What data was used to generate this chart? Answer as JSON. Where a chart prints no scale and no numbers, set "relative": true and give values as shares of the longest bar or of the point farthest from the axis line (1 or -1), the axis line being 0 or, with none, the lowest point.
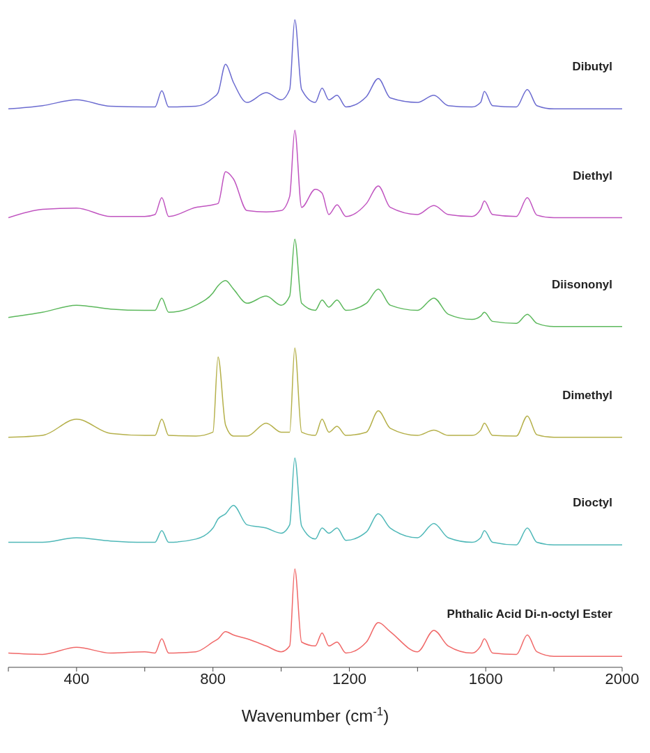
{
  "chart_data": {
    "type": "line",
    "relative": true,
    "xlabel": "Wavenumber (cm$^{-1}$)",
    "xlim": [
      200,
      2000
    ],
    "xticks": [
      {
        "value": 200,
        "label": null
      },
      400,
      {
        "value": 600,
        "label": null
      },
      800,
      {
        "value": 1000,
        "label": null
      },
      1200,
      {
        "value": 1400,
        "label": null
      },
      1600,
      {
        "value": 1800,
        "label": null
      },
      2000
    ],
    "x": [
      200,
      300,
      400,
      500,
      600,
      630,
      650,
      670,
      750,
      800,
      815,
      837,
      860,
      900,
      956,
      1000,
      1025,
      1040,
      1060,
      1100,
      1120,
      1140,
      1164,
      1190,
      1250,
      1285,
      1320,
      1400,
      1448,
      1490,
      1560,
      1585,
      1596,
      1620,
      1690,
      1722,
      1750,
      1800,
      2000
    ],
    "series": [
      {
        "name": "Dibutyl",
        "color": "#6b6bd0",
        "values": [
          0.862,
          0.867,
          0.876,
          0.866,
          0.865,
          0.865,
          0.89,
          0.865,
          0.866,
          0.879,
          0.887,
          0.931,
          0.903,
          0.872,
          0.887,
          0.876,
          0.892,
          1,
          0.892,
          0.872,
          0.894,
          0.876,
          0.883,
          0.865,
          0.881,
          0.909,
          0.879,
          0.872,
          0.883,
          0.867,
          0.865,
          0.872,
          0.889,
          0.867,
          0.865,
          0.892,
          0.867,
          0.862,
          0.862
        ]
      },
      {
        "name": "Diethyl",
        "color": "#c054c0",
        "values": [
          0.694,
          0.707,
          0.709,
          0.696,
          0.696,
          0.699,
          0.725,
          0.696,
          0.71,
          0.714,
          0.716,
          0.765,
          0.754,
          0.705,
          0.703,
          0.705,
          0.727,
          0.829,
          0.71,
          0.738,
          0.732,
          0.699,
          0.714,
          0.696,
          0.716,
          0.743,
          0.71,
          0.699,
          0.713,
          0.699,
          0.696,
          0.707,
          0.72,
          0.699,
          0.696,
          0.725,
          0.698,
          0.694,
          0.694
        ]
      },
      {
        "name": "Diisononyl",
        "color": "#5cb85c",
        "values": [
          0.54,
          0.548,
          0.559,
          0.553,
          0.551,
          0.551,
          0.57,
          0.548,
          0.559,
          0.578,
          0.589,
          0.597,
          0.584,
          0.562,
          0.573,
          0.559,
          0.573,
          0.661,
          0.562,
          0.551,
          0.567,
          0.556,
          0.567,
          0.551,
          0.562,
          0.584,
          0.559,
          0.551,
          0.57,
          0.545,
          0.537,
          0.542,
          0.548,
          0.534,
          0.531,
          0.545,
          0.531,
          0.526,
          0.526
        ]
      },
      {
        "name": "Dimethyl",
        "color": "#b5b04a",
        "values": [
          0.355,
          0.358,
          0.383,
          0.361,
          0.358,
          0.358,
          0.383,
          0.358,
          0.357,
          0.363,
          0.479,
          0.374,
          0.357,
          0.357,
          0.377,
          0.363,
          0.363,
          0.493,
          0.363,
          0.358,
          0.383,
          0.363,
          0.372,
          0.358,
          0.363,
          0.396,
          0.369,
          0.358,
          0.366,
          0.358,
          0.358,
          0.366,
          0.377,
          0.358,
          0.357,
          0.388,
          0.359,
          0.355,
          0.355
        ]
      },
      {
        "name": "Dioctyl",
        "color": "#4fb8b8",
        "values": [
          0.193,
          0.193,
          0.2,
          0.195,
          0.193,
          0.193,
          0.211,
          0.193,
          0.198,
          0.215,
          0.229,
          0.237,
          0.25,
          0.22,
          0.215,
          0.207,
          0.22,
          0.323,
          0.218,
          0.198,
          0.215,
          0.207,
          0.215,
          0.196,
          0.209,
          0.237,
          0.215,
          0.2,
          0.222,
          0.2,
          0.193,
          0.2,
          0.211,
          0.193,
          0.189,
          0.215,
          0.193,
          0.189,
          0.189
        ]
      },
      {
        "name": "Phthalic Acid Di-n-octyl Ester",
        "color": "#f06868",
        "values": [
          0.022,
          0.02,
          0.031,
          0.022,
          0.024,
          0.022,
          0.044,
          0.022,
          0.024,
          0.039,
          0.044,
          0.055,
          0.05,
          0.044,
          0.033,
          0.024,
          0.033,
          0.152,
          0.039,
          0.033,
          0.053,
          0.033,
          0.039,
          0.022,
          0.039,
          0.069,
          0.055,
          0.024,
          0.057,
          0.033,
          0.022,
          0.033,
          0.044,
          0.022,
          0.02,
          0.05,
          0.024,
          0.017,
          0.017
        ]
      }
    ]
  }
}
